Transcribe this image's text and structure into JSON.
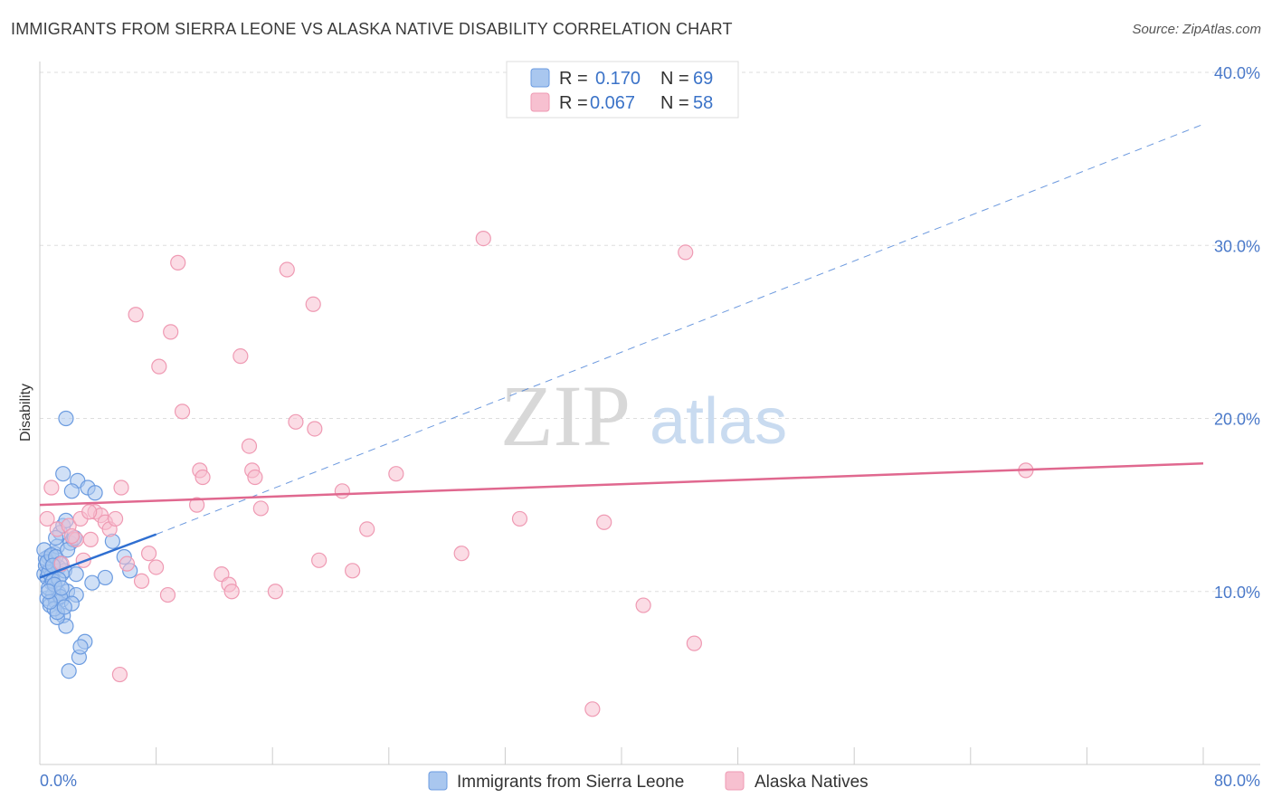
{
  "title": "IMMIGRANTS FROM SIERRA LEONE VS ALASKA NATIVE DISABILITY CORRELATION CHART",
  "source": "Source: ZipAtlas.com",
  "chart_data": {
    "type": "scatter",
    "title": "IMMIGRANTS FROM SIERRA LEONE VS ALASKA NATIVE DISABILITY CORRELATION CHART",
    "xlabel": "",
    "ylabel": "Disability",
    "xlim": [
      0,
      80
    ],
    "ylim": [
      0,
      40
    ],
    "x_tick_labels": [
      "0.0%",
      "80.0%"
    ],
    "y_ticks": [
      10,
      20,
      30,
      40
    ],
    "y_tick_labels": [
      "10.0%",
      "20.0%",
      "30.0%",
      "40.0%"
    ],
    "grid": "horizontal dashed",
    "legend": {
      "position": "top-center",
      "entries": [
        {
          "r_label": "R =",
          "r_value": "0.170",
          "n_label": "N =",
          "n_value": "69"
        },
        {
          "r_label": "R =",
          "r_value": "0.067",
          "n_label": "N =",
          "n_value": "58"
        }
      ]
    },
    "bottom_legend": [
      "Immigrants from Sierra Leone",
      "Alaska Natives"
    ],
    "watermark": {
      "part1": "ZIP",
      "part2": "atlas"
    },
    "colors": {
      "blue_fill": "#a9c7ef",
      "blue_stroke": "#6b9be0",
      "blue_line": "#2f6fd1",
      "pink_fill": "#f7c0d0",
      "pink_stroke": "#ef9ab3",
      "pink_line": "#e0688f",
      "grid": "#dddddd",
      "axis": "#cccccc"
    },
    "series": [
      {
        "name": "Immigrants from Sierra Leone",
        "trend": {
          "x": [
            0,
            8
          ],
          "y": [
            10.8,
            13.3
          ],
          "extended": {
            "x": [
              8,
              80
            ],
            "y": [
              13.3,
              37.0
            ]
          }
        },
        "points": [
          [
            0.3,
            11.0
          ],
          [
            0.4,
            11.5
          ],
          [
            0.5,
            10.8
          ],
          [
            0.6,
            12.0
          ],
          [
            0.7,
            11.3
          ],
          [
            0.8,
            10.5
          ],
          [
            0.9,
            11.8
          ],
          [
            1.0,
            11.2
          ],
          [
            0.5,
            9.6
          ],
          [
            0.7,
            9.2
          ],
          [
            0.9,
            9.8
          ],
          [
            1.1,
            9.4
          ],
          [
            1.3,
            9.9
          ],
          [
            1.5,
            9.5
          ],
          [
            0.6,
            10.2
          ],
          [
            0.8,
            10.9
          ],
          [
            1.0,
            12.2
          ],
          [
            1.2,
            12.6
          ],
          [
            1.4,
            13.4
          ],
          [
            1.6,
            13.8
          ],
          [
            1.8,
            14.1
          ],
          [
            1.1,
            13.1
          ],
          [
            1.3,
            11.4
          ],
          [
            1.5,
            11.0
          ],
          [
            1.7,
            11.2
          ],
          [
            1.9,
            10.0
          ],
          [
            2.1,
            12.8
          ],
          [
            2.3,
            13.0
          ],
          [
            2.5,
            9.8
          ],
          [
            1.6,
            8.6
          ],
          [
            1.8,
            8.0
          ],
          [
            1.2,
            8.5
          ],
          [
            1.6,
            16.8
          ],
          [
            2.6,
            16.4
          ],
          [
            3.3,
            16.0
          ],
          [
            3.8,
            15.7
          ],
          [
            2.2,
            15.8
          ],
          [
            1.8,
            20.0
          ],
          [
            2.5,
            11.0
          ],
          [
            4.5,
            10.8
          ],
          [
            3.6,
            10.5
          ],
          [
            5.0,
            12.9
          ],
          [
            5.8,
            12.0
          ],
          [
            6.2,
            11.2
          ],
          [
            3.1,
            7.1
          ],
          [
            2.7,
            6.2
          ],
          [
            2.0,
            5.4
          ],
          [
            2.8,
            6.8
          ],
          [
            0.4,
            11.9
          ],
          [
            0.6,
            11.1
          ],
          [
            0.9,
            10.6
          ],
          [
            1.3,
            10.7
          ],
          [
            1.4,
            9.7
          ],
          [
            1.0,
            9.0
          ],
          [
            1.2,
            8.8
          ],
          [
            2.2,
            9.3
          ],
          [
            0.3,
            12.4
          ],
          [
            0.5,
            11.7
          ],
          [
            0.8,
            12.1
          ],
          [
            1.0,
            10.4
          ],
          [
            1.7,
            9.1
          ],
          [
            0.7,
            9.4
          ],
          [
            1.1,
            12.0
          ],
          [
            1.4,
            11.6
          ],
          [
            1.9,
            12.4
          ],
          [
            2.4,
            13.1
          ],
          [
            0.6,
            10.0
          ],
          [
            0.9,
            11.5
          ],
          [
            1.5,
            10.2
          ]
        ]
      },
      {
        "name": "Alaska Natives",
        "trend": {
          "x": [
            0,
            80
          ],
          "y": [
            15.0,
            17.4
          ]
        },
        "points": [
          [
            0.5,
            14.2
          ],
          [
            0.8,
            16.0
          ],
          [
            1.2,
            13.6
          ],
          [
            1.5,
            11.6
          ],
          [
            2.0,
            13.8
          ],
          [
            2.5,
            13.0
          ],
          [
            2.8,
            14.2
          ],
          [
            3.0,
            11.8
          ],
          [
            3.5,
            13.0
          ],
          [
            3.8,
            14.6
          ],
          [
            4.2,
            14.4
          ],
          [
            4.5,
            14.0
          ],
          [
            4.8,
            13.6
          ],
          [
            5.2,
            14.2
          ],
          [
            5.6,
            16.0
          ],
          [
            6.0,
            11.6
          ],
          [
            7.0,
            10.6
          ],
          [
            7.5,
            12.2
          ],
          [
            8.0,
            11.4
          ],
          [
            8.8,
            9.8
          ],
          [
            6.6,
            26.0
          ],
          [
            8.2,
            23.0
          ],
          [
            9.0,
            25.0
          ],
          [
            9.5,
            29.0
          ],
          [
            9.8,
            20.4
          ],
          [
            10.8,
            15.0
          ],
          [
            11.0,
            17.0
          ],
          [
            11.2,
            16.6
          ],
          [
            12.5,
            11.0
          ],
          [
            13.0,
            10.4
          ],
          [
            13.2,
            10.0
          ],
          [
            13.8,
            23.6
          ],
          [
            14.4,
            18.4
          ],
          [
            14.6,
            17.0
          ],
          [
            14.8,
            16.6
          ],
          [
            15.2,
            14.8
          ],
          [
            16.2,
            10.0
          ],
          [
            17.0,
            28.6
          ],
          [
            17.6,
            19.8
          ],
          [
            18.8,
            26.6
          ],
          [
            18.9,
            19.4
          ],
          [
            19.2,
            11.8
          ],
          [
            20.8,
            15.8
          ],
          [
            21.5,
            11.2
          ],
          [
            22.5,
            13.6
          ],
          [
            24.5,
            16.8
          ],
          [
            29.0,
            12.2
          ],
          [
            30.5,
            30.4
          ],
          [
            33.0,
            14.2
          ],
          [
            38.0,
            3.2
          ],
          [
            38.8,
            14.0
          ],
          [
            41.5,
            9.2
          ],
          [
            44.4,
            29.6
          ],
          [
            45.0,
            7.0
          ],
          [
            67.8,
            17.0
          ],
          [
            3.4,
            14.6
          ],
          [
            5.5,
            5.2
          ],
          [
            2.2,
            13.2
          ]
        ]
      }
    ]
  }
}
